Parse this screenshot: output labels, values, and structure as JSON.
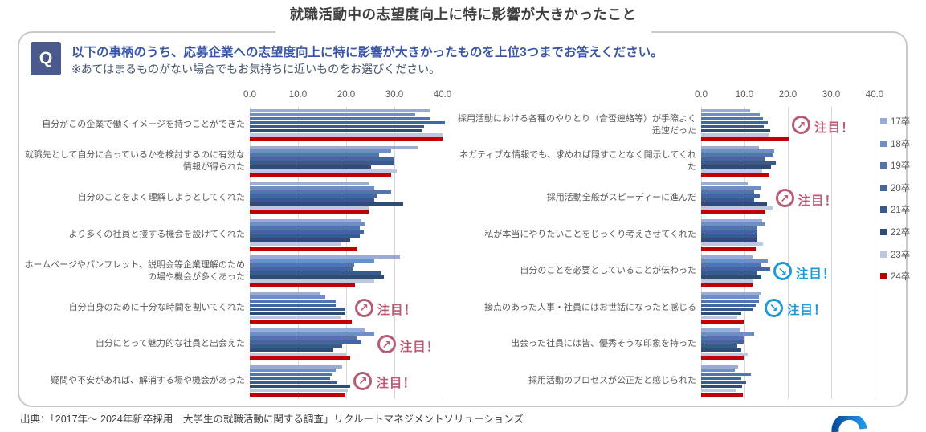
{
  "title": "就職活動中の志望度向上に特に影響が大きかったこと",
  "question": {
    "badge": "Q",
    "line1": "以下の事柄のうち、応募企業への志望度向上に特に影響が大きかったものを上位3つまでお答えください。",
    "line2": "※あてはまるものがない場合でもお気持ちに近いものをお選びください。"
  },
  "source": "出典：「2017年～ 2024年新卒採用　大学生の就職活動に関する調査」リクルートマネジメントソリューションズ",
  "colors": {
    "frame_border": "#c9c9c9",
    "gridline": "#d9d9d9",
    "axis_text": "#595959",
    "question_badge_bg": "#4a5a8c",
    "question_text": "#3a57a7",
    "question_note": "#44546a",
    "annotation_up": "#b85c76",
    "annotation_down": "#1b9cd8",
    "logo_blue": "#1565c0"
  },
  "legend": {
    "position": "right",
    "entries": [
      {
        "label": "17卒",
        "color": "#9aabd4"
      },
      {
        "label": "18卒",
        "color": "#6d8fc6"
      },
      {
        "label": "19卒",
        "color": "#5274af"
      },
      {
        "label": "20卒",
        "color": "#42669f"
      },
      {
        "label": "21卒",
        "color": "#395a8d"
      },
      {
        "label": "22卒",
        "color": "#2e4c78"
      },
      {
        "label": "23卒",
        "color": "#bdc8df"
      },
      {
        "label": "24卒",
        "color": "#c00000"
      }
    ]
  },
  "chart_data": [
    {
      "type": "bar",
      "orientation": "horizontal",
      "xlim": [
        0,
        40
      ],
      "xtick_labels": [
        "0.0",
        "10.0",
        "20.0",
        "30.0",
        "40.0"
      ],
      "grid": true,
      "categories": [
        "自分がこの企業で働くイメージを持つことができた",
        "就職先として自分に合っているかを検討するのに有効な情報が得られた",
        "自分のことをよく理解しようとしてくれた",
        "より多くの社員と接する機会を設けてくれた",
        "ホームページやパンフレット、説明会等企業理解のための場や機会が多くあった",
        "自分自身のために十分な時間を割いてくれた",
        "自分にとって魅力的な社員と出会えた",
        "疑問や不安があれば、解消する場や機会があった"
      ],
      "series": [
        {
          "name": "17卒",
          "color": "#9aabd4",
          "values": [
            37.3,
            34.8,
            24.9,
            23.2,
            31.2,
            14.7,
            23.9,
            19.2
          ]
        },
        {
          "name": "18卒",
          "color": "#6d8fc6",
          "values": [
            34.3,
            29.4,
            25.9,
            23.8,
            25.9,
            15.7,
            25.8,
            17.9
          ]
        },
        {
          "name": "19卒",
          "color": "#5274af",
          "values": [
            37.5,
            26.8,
            29.4,
            22.9,
            21.7,
            17.8,
            22.2,
            17.2
          ]
        },
        {
          "name": "20卒",
          "color": "#42669f",
          "values": [
            40.5,
            29.8,
            26.3,
            23.6,
            21.3,
            17.8,
            23.2,
            16.6
          ]
        },
        {
          "name": "21卒",
          "color": "#395a8d",
          "values": [
            36.2,
            30.0,
            25.9,
            22.8,
            27.2,
            19.6,
            19.2,
            18.2
          ]
        },
        {
          "name": "22卒",
          "color": "#2e4c78",
          "values": [
            35.8,
            25.2,
            31.8,
            20.8,
            27.8,
            19.7,
            17.4,
            20.9
          ]
        },
        {
          "name": "23卒",
          "color": "#bdc8df",
          "values": [
            40.2,
            30.5,
            24.9,
            19.0,
            25.9,
            18.9,
            20.0,
            20.4
          ]
        },
        {
          "name": "24卒",
          "color": "#c00000",
          "values": [
            40.0,
            29.3,
            24.7,
            22.3,
            21.9,
            21.1,
            20.8,
            19.9
          ]
        }
      ],
      "annotations": [
        {
          "category_index": 5,
          "label": "注目！",
          "trend": "up"
        },
        {
          "category_index": 6,
          "label": "注目！",
          "trend": "up"
        },
        {
          "category_index": 7,
          "label": "注目！",
          "trend": "up"
        }
      ]
    },
    {
      "type": "bar",
      "orientation": "horizontal",
      "xlim": [
        0,
        40
      ],
      "xtick_labels": [
        "0.0",
        "10.0",
        "20.0",
        "30.0",
        "40.0"
      ],
      "grid": true,
      "categories": [
        "採用活動における各種のやりとり（合否連絡等）が手際よく迅速だった",
        "ネガティブな情報でも、求めれば隠すことなく開示してくれた",
        "採用活動全般がスピーディーに進んだ",
        "私が本当にやりたいことをじっくり考えさせてくれた",
        "自分のことを必要としていることが伝わった",
        "接点のあった人事・社員にはお世話になったと感じる",
        "出会った社員には皆、優秀そうな印象を持った",
        "採用活動のプロセスが公正だと感じられた"
      ],
      "series": [
        {
          "name": "17卒",
          "color": "#9aabd4",
          "values": [
            11.3,
            13.3,
            10.7,
            14.1,
            11.8,
            13.9,
            9.0,
            8.6
          ]
        },
        {
          "name": "18卒",
          "color": "#6d8fc6",
          "values": [
            13.5,
            16.9,
            13.9,
            14.7,
            15.3,
            13.3,
            12.2,
            7.8
          ]
        },
        {
          "name": "19卒",
          "color": "#5274af",
          "values": [
            14.3,
            16.5,
            12.3,
            12.8,
            13.8,
            13.3,
            9.9,
            11.5
          ]
        },
        {
          "name": "20卒",
          "color": "#42669f",
          "values": [
            15.3,
            14.7,
            13.6,
            13.0,
            15.9,
            12.5,
            9.8,
            9.2
          ]
        },
        {
          "name": "21卒",
          "color": "#395a8d",
          "values": [
            14.5,
            17.3,
            12.3,
            12.8,
            12.8,
            11.9,
            8.3,
            10.4
          ]
        },
        {
          "name": "22卒",
          "color": "#2e4c78",
          "values": [
            16.0,
            16.2,
            15.1,
            13.0,
            13.8,
            9.2,
            9.2,
            9.5
          ]
        },
        {
          "name": "23卒",
          "color": "#bdc8df",
          "values": [
            15.5,
            14.0,
            16.4,
            14.3,
            12.1,
            8.3,
            10.7,
            8.1
          ]
        },
        {
          "name": "24卒",
          "color": "#c00000",
          "values": [
            20.2,
            15.8,
            14.8,
            12.6,
            11.9,
            9.9,
            9.8,
            9.6
          ]
        }
      ],
      "annotations": [
        {
          "category_index": 0,
          "label": "注目！",
          "trend": "up"
        },
        {
          "category_index": 2,
          "label": "注目！",
          "trend": "up"
        },
        {
          "category_index": 4,
          "label": "注目！",
          "trend": "down"
        },
        {
          "category_index": 5,
          "label": "注目！",
          "trend": "down"
        }
      ]
    }
  ]
}
